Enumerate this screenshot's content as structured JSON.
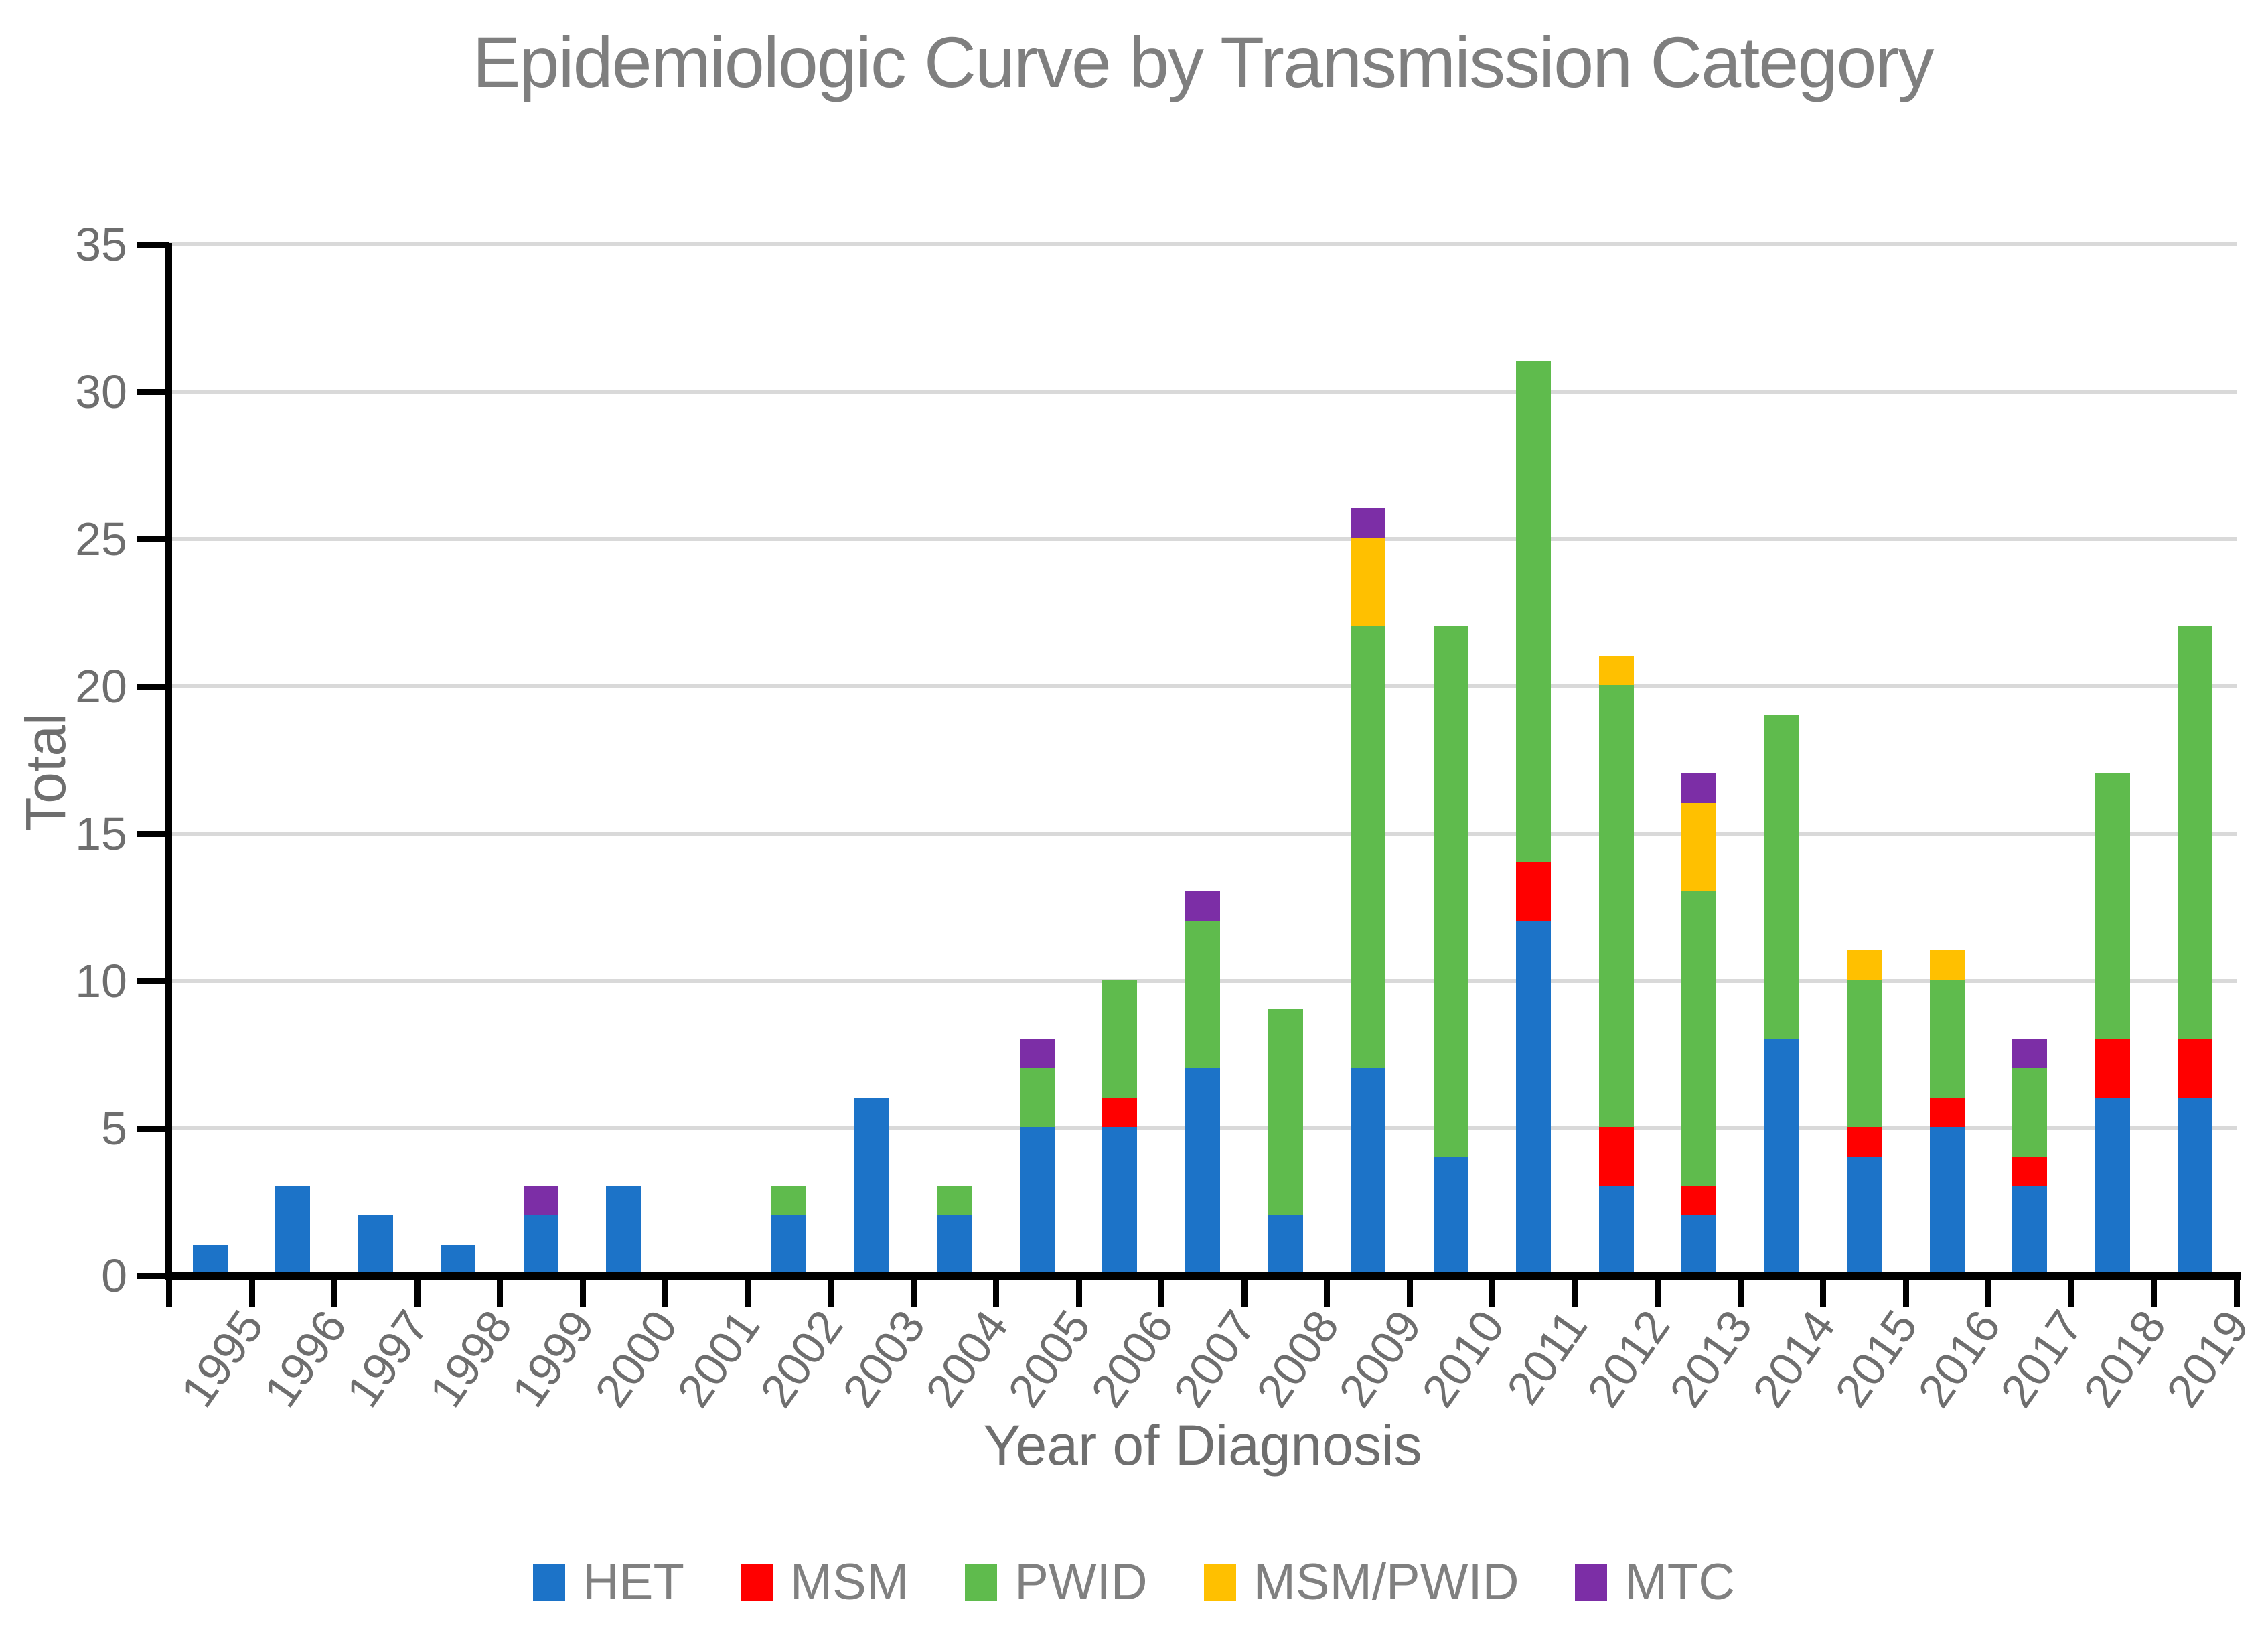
{
  "chart_data": {
    "type": "bar",
    "stacked": true,
    "title": "Epidemiologic Curve by Transmission Category",
    "xlabel": "Year of Diagnosis",
    "ylabel": "Total",
    "ylim": [
      0,
      35
    ],
    "ytick_step": 5,
    "yticks": [
      "0",
      "5",
      "10",
      "15",
      "20",
      "25",
      "30",
      "35"
    ],
    "grid": true,
    "legend_position": "bottom",
    "categories": [
      "1995",
      "1996",
      "1997",
      "1998",
      "1999",
      "2000",
      "2001",
      "2002",
      "2003",
      "2004",
      "2005",
      "2006",
      "2007",
      "2008",
      "2009",
      "2010",
      "2011",
      "2012",
      "2013",
      "2014",
      "2015",
      "2016",
      "2017",
      "2018",
      "2019"
    ],
    "series": [
      {
        "name": "HET",
        "color": "#1C73C8",
        "values": [
          1,
          3,
          2,
          1,
          2,
          3,
          0,
          2,
          6,
          2,
          5,
          5,
          7,
          2,
          7,
          4,
          12,
          3,
          2,
          8,
          4,
          5,
          3,
          6,
          6
        ]
      },
      {
        "name": "MSM",
        "color": "#FF0000",
        "values": [
          0,
          0,
          0,
          0,
          0,
          0,
          0,
          0,
          0,
          0,
          0,
          1,
          0,
          0,
          0,
          0,
          2,
          2,
          1,
          0,
          1,
          1,
          1,
          2,
          2
        ]
      },
      {
        "name": "PWID",
        "color": "#5FBB4D",
        "values": [
          0,
          0,
          0,
          0,
          0,
          0,
          0,
          1,
          0,
          1,
          2,
          4,
          5,
          7,
          15,
          18,
          17,
          15,
          10,
          11,
          5,
          4,
          3,
          9,
          14
        ]
      },
      {
        "name": "MSM/PWID",
        "color": "#FFC000",
        "values": [
          0,
          0,
          0,
          0,
          0,
          0,
          0,
          0,
          0,
          0,
          0,
          0,
          0,
          0,
          3,
          0,
          0,
          1,
          3,
          0,
          1,
          1,
          0,
          0,
          0
        ]
      },
      {
        "name": "MTC",
        "color": "#7C2EA6",
        "values": [
          0,
          0,
          0,
          0,
          1,
          0,
          0,
          0,
          0,
          0,
          1,
          0,
          1,
          0,
          1,
          0,
          0,
          0,
          1,
          0,
          0,
          0,
          1,
          0,
          0
        ]
      }
    ],
    "totals": [
      1,
      3,
      2,
      1,
      3,
      3,
      0,
      3,
      6,
      3,
      8,
      10,
      13,
      9,
      26,
      22,
      31,
      21,
      17,
      19,
      11,
      11,
      8,
      17,
      22
    ]
  },
  "style_colors": {
    "gridline": "#d9d9d9",
    "axis": "#000000",
    "tick_text": "#6e6e6e",
    "title_text": "#7f7f7f",
    "legend_text": "#808080"
  }
}
